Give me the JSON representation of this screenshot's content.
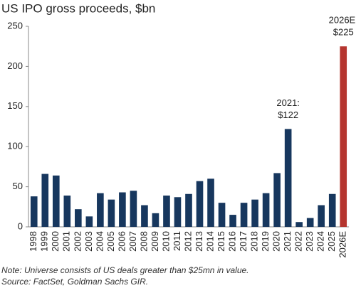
{
  "chart_data": {
    "type": "bar",
    "title": "US IPO gross proceeds, $bn",
    "categories": [
      "1998",
      "1999",
      "2000",
      "2001",
      "2002",
      "2003",
      "2004",
      "2005",
      "2006",
      "2007",
      "2008",
      "2009",
      "2010",
      "2011",
      "2012",
      "2013",
      "2014",
      "2015",
      "2016",
      "2017",
      "2018",
      "2019",
      "2020",
      "2021",
      "2022",
      "2023",
      "2024",
      "2025",
      "2026E"
    ],
    "values": [
      38,
      66,
      64,
      39,
      22,
      13,
      42,
      34,
      43,
      45,
      27,
      17,
      39,
      37,
      41,
      57,
      60,
      30,
      15,
      30,
      34,
      42,
      67,
      122,
      6,
      11,
      27,
      41,
      225
    ],
    "value_labels": [
      null,
      null,
      null,
      null,
      null,
      null,
      null,
      null,
      null,
      null,
      null,
      null,
      null,
      null,
      null,
      null,
      null,
      null,
      null,
      null,
      null,
      null,
      null,
      "$122",
      null,
      null,
      null,
      null,
      "$225"
    ],
    "label_titles": [
      null,
      null,
      null,
      null,
      null,
      null,
      null,
      null,
      null,
      null,
      null,
      null,
      null,
      null,
      null,
      null,
      null,
      null,
      null,
      null,
      null,
      null,
      null,
      "2021:",
      null,
      null,
      null,
      null,
      "2026E:"
    ],
    "colors": [
      "#17375e",
      "#17375e",
      "#17375e",
      "#17375e",
      "#17375e",
      "#17375e",
      "#17375e",
      "#17375e",
      "#17375e",
      "#17375e",
      "#17375e",
      "#17375e",
      "#17375e",
      "#17375e",
      "#17375e",
      "#17375e",
      "#17375e",
      "#17375e",
      "#17375e",
      "#17375e",
      "#17375e",
      "#17375e",
      "#17375e",
      "#17375e",
      "#17375e",
      "#17375e",
      "#17375e",
      "#17375e",
      "#b5352f"
    ],
    "ylim": [
      0,
      250
    ],
    "yticks": [
      0,
      50,
      100,
      150,
      200,
      250
    ],
    "grid": false,
    "notes": [
      "Note: Universe consists of US deals greater than $25mn in value.",
      "Source: FactSet, Goldman Sachs GIR."
    ]
  }
}
